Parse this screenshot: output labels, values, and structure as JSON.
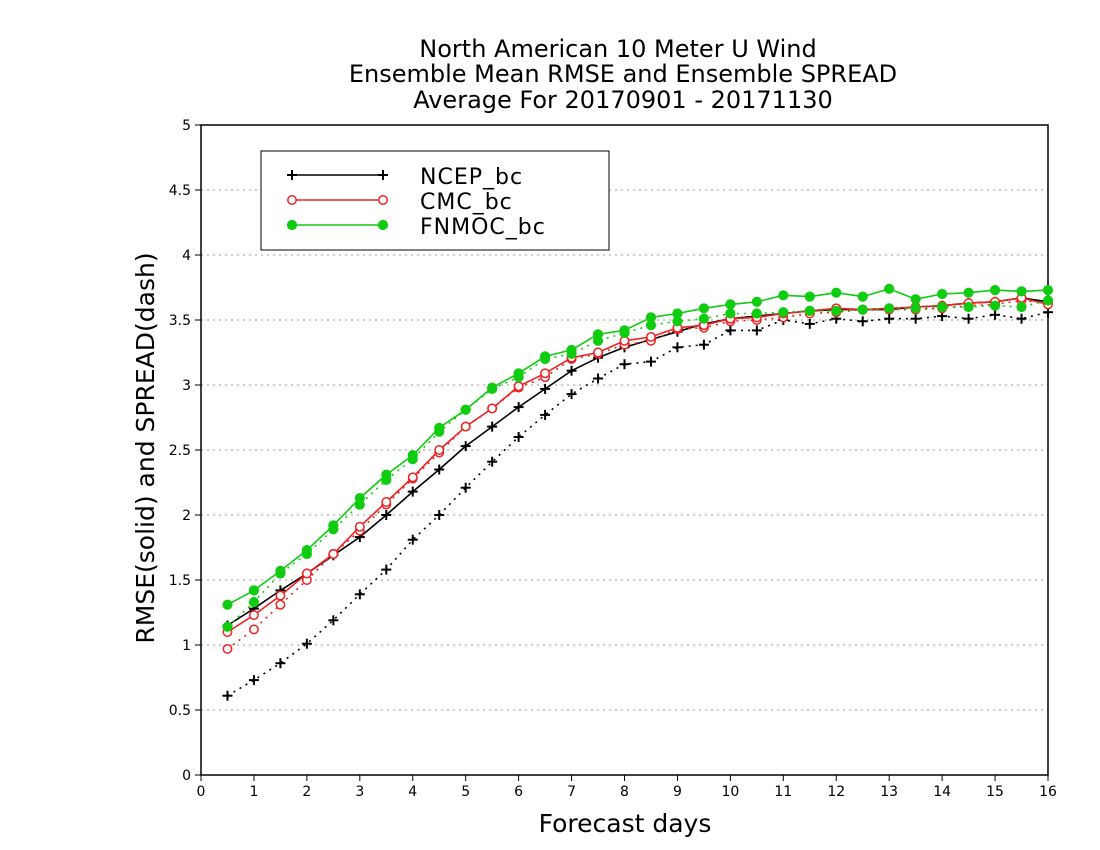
{
  "chart_data": {
    "type": "line",
    "title": [
      "North American 10 Meter U Wind",
      "Ensemble Mean RMSE and Ensemble SPREAD",
      "Average For 20170901 - 20171130"
    ],
    "xlabel": "Forecast days",
    "ylabel": "RMSE(solid) and SPREAD(dash)",
    "xlim": [
      0,
      16
    ],
    "ylim": [
      0,
      5
    ],
    "xticks": [
      "0",
      "1",
      "2",
      "3",
      "4",
      "5",
      "6",
      "7",
      "8",
      "9",
      "10",
      "11",
      "12",
      "13",
      "14",
      "15",
      "16"
    ],
    "yticks": [
      "0",
      "0.5",
      "1",
      "1.5",
      "2",
      "2.5",
      "3",
      "3.5",
      "4",
      "4.5",
      "5"
    ],
    "grid": "horizontal dotted",
    "legend_position": "top-left",
    "x": [
      0.5,
      1,
      1.5,
      2,
      2.5,
      3,
      3.5,
      4,
      4.5,
      5,
      5.5,
      6,
      6.5,
      7,
      7.5,
      8,
      8.5,
      9,
      9.5,
      10,
      10.5,
      11,
      11.5,
      12,
      12.5,
      13,
      13.5,
      14,
      14.5,
      15,
      15.5,
      16
    ],
    "series": [
      {
        "name": "NCEP_bc",
        "color": "#000000",
        "marker": "plus",
        "rmse": [
          1.15,
          1.28,
          1.42,
          1.55,
          1.69,
          1.83,
          2.0,
          2.18,
          2.35,
          2.53,
          2.68,
          2.83,
          2.97,
          3.11,
          3.21,
          3.29,
          3.35,
          3.41,
          3.47,
          3.51,
          3.53,
          3.55,
          3.57,
          3.58,
          3.58,
          3.58,
          3.6,
          3.61,
          3.63,
          3.64,
          3.67,
          3.64
        ],
        "spread": [
          0.61,
          0.73,
          0.86,
          1.01,
          1.19,
          1.39,
          1.58,
          1.81,
          2.0,
          2.21,
          2.41,
          2.6,
          2.77,
          2.93,
          3.05,
          3.16,
          3.18,
          3.29,
          3.31,
          3.42,
          3.42,
          3.5,
          3.47,
          3.51,
          3.49,
          3.51,
          3.51,
          3.53,
          3.51,
          3.54,
          3.51,
          3.56
        ]
      },
      {
        "name": "CMC_bc",
        "color": "#ee2222",
        "marker": "open-circle",
        "rmse": [
          1.1,
          1.23,
          1.38,
          1.55,
          1.7,
          1.91,
          2.1,
          2.29,
          2.5,
          2.68,
          2.82,
          2.99,
          3.09,
          3.21,
          3.25,
          3.34,
          3.37,
          3.44,
          3.46,
          3.51,
          3.52,
          3.55,
          3.57,
          3.59,
          3.58,
          3.59,
          3.6,
          3.61,
          3.63,
          3.64,
          3.67,
          3.62
        ],
        "spread": [
          0.97,
          1.12,
          1.31,
          1.5,
          1.7,
          1.88,
          2.08,
          2.28,
          2.48,
          2.68,
          2.82,
          2.98,
          3.06,
          3.2,
          3.24,
          3.31,
          3.34,
          3.43,
          3.44,
          3.49,
          3.5,
          3.52,
          3.55,
          3.56,
          3.58,
          3.58,
          3.58,
          3.59,
          3.61,
          3.62,
          3.65,
          3.63
        ]
      },
      {
        "name": "FNMOC_bc",
        "color": "#10cc10",
        "marker": "filled-circle",
        "rmse": [
          1.31,
          1.42,
          1.57,
          1.73,
          1.92,
          2.13,
          2.31,
          2.46,
          2.67,
          2.81,
          2.98,
          3.09,
          3.22,
          3.27,
          3.39,
          3.42,
          3.52,
          3.55,
          3.59,
          3.62,
          3.64,
          3.69,
          3.68,
          3.71,
          3.68,
          3.74,
          3.66,
          3.7,
          3.71,
          3.73,
          3.72,
          3.73
        ],
        "spread": [
          1.14,
          1.33,
          1.55,
          1.7,
          1.89,
          2.08,
          2.27,
          2.43,
          2.64,
          2.81,
          2.97,
          3.06,
          3.2,
          3.24,
          3.34,
          3.4,
          3.46,
          3.49,
          3.51,
          3.55,
          3.55,
          3.56,
          3.57,
          3.57,
          3.58,
          3.59,
          3.59,
          3.6,
          3.6,
          3.61,
          3.6,
          3.65
        ]
      }
    ]
  }
}
